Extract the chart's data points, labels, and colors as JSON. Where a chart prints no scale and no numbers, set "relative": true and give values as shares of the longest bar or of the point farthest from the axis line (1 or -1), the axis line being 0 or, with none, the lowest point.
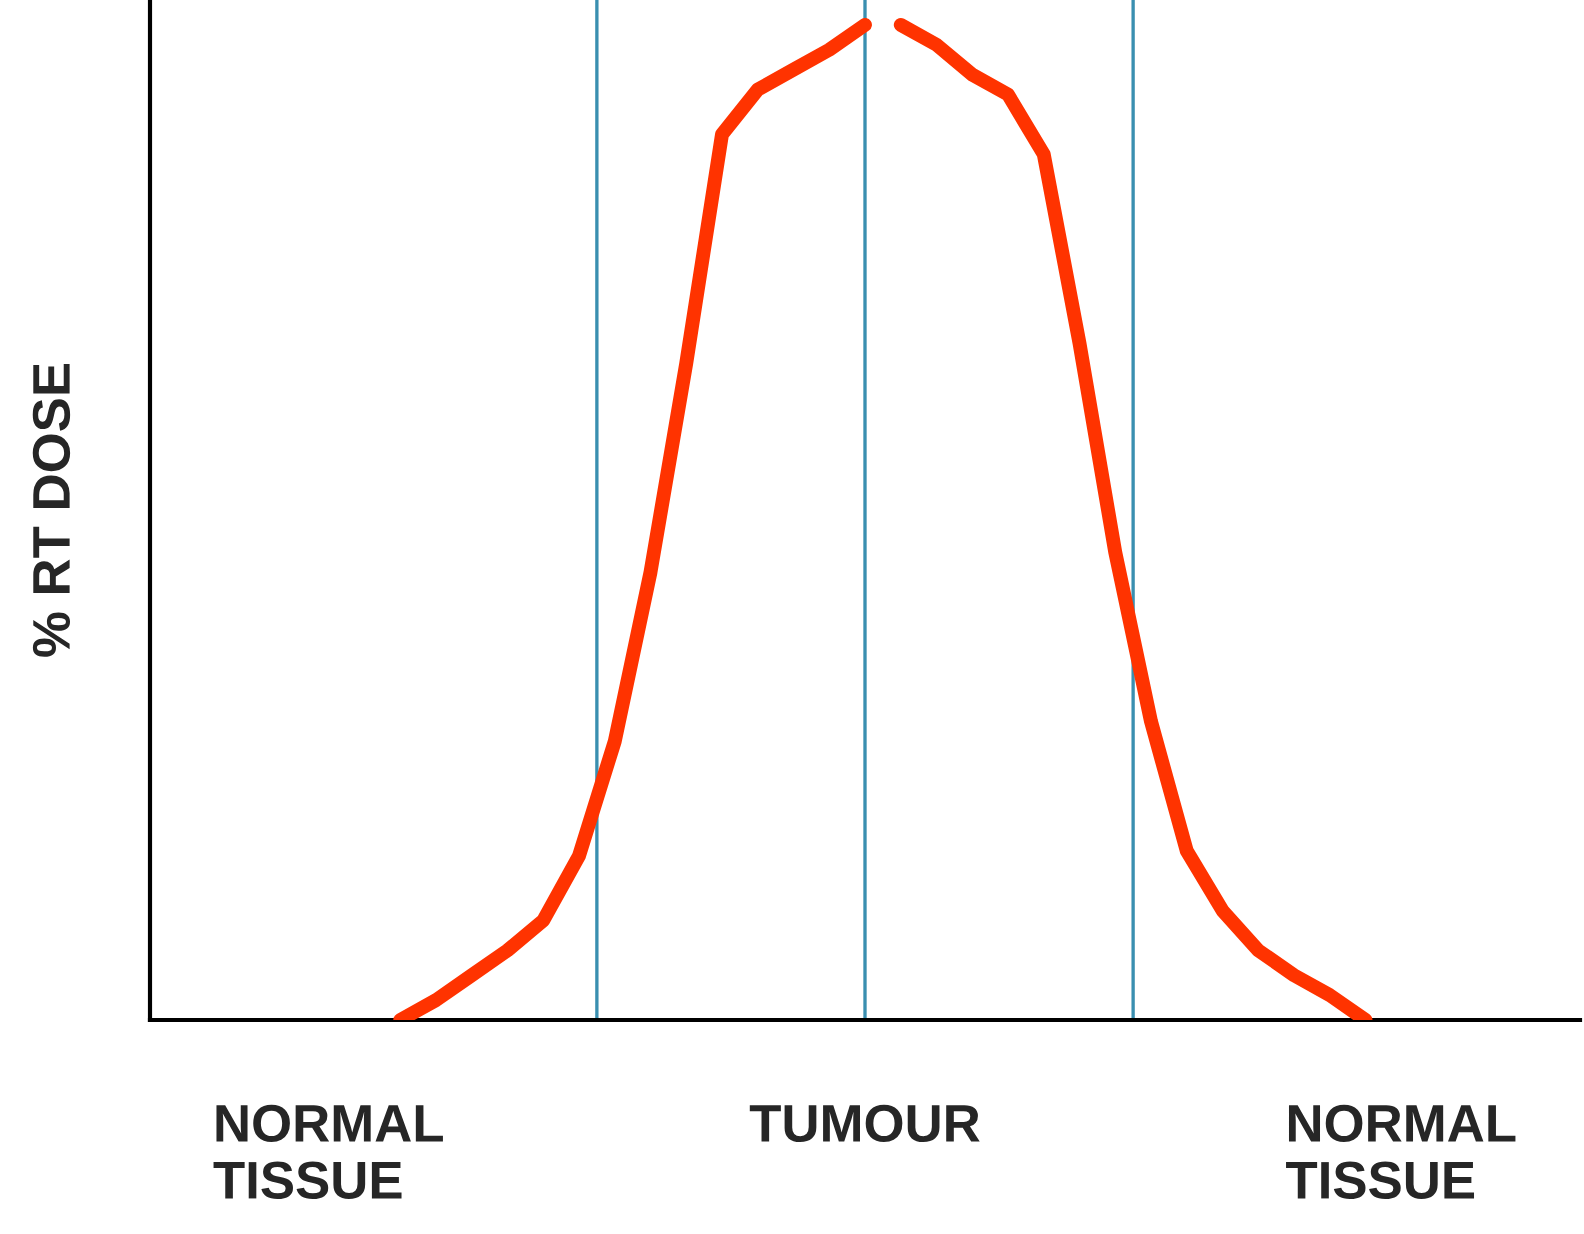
{
  "chart_data": {
    "type": "line",
    "ylabel": "% RT DOSE",
    "relative": true,
    "categories": [
      null,
      null,
      null,
      null,
      null,
      "NORMAL\nTISSUE",
      null,
      null,
      null,
      null,
      null,
      null,
      null,
      null,
      null,
      null,
      null,
      null,
      null,
      null,
      "TUMOUR",
      null,
      null,
      null,
      null,
      null,
      null,
      null,
      null,
      null,
      null,
      null,
      null,
      null,
      null,
      "NORMAL\nTISSUE",
      null,
      null,
      null,
      null,
      null
    ],
    "series": [
      {
        "color": "#ff3300",
        "values": [
          null,
          null,
          null,
          null,
          null,
          null,
          null,
          0,
          0.02,
          0.045,
          0.07,
          0.1,
          0.165,
          0.28,
          0.45,
          0.66,
          0.89,
          0.935,
          0.955,
          0.975,
          1.0,
          null,
          null,
          null,
          null,
          null,
          null,
          null,
          null,
          null,
          null,
          null,
          null,
          null,
          null,
          null,
          null,
          null,
          null,
          null,
          null
        ]
      },
      {
        "color": "#ff3300",
        "values": [
          null,
          null,
          null,
          null,
          null,
          null,
          null,
          null,
          null,
          null,
          null,
          null,
          null,
          null,
          null,
          null,
          null,
          null,
          null,
          null,
          null,
          1.0,
          0.98,
          0.95,
          0.93,
          0.87,
          0.68,
          0.47,
          0.3,
          0.17,
          0.11,
          0.07,
          0.045,
          0.025,
          0,
          null,
          null,
          null,
          null,
          null,
          null
        ]
      }
    ]
  }
}
